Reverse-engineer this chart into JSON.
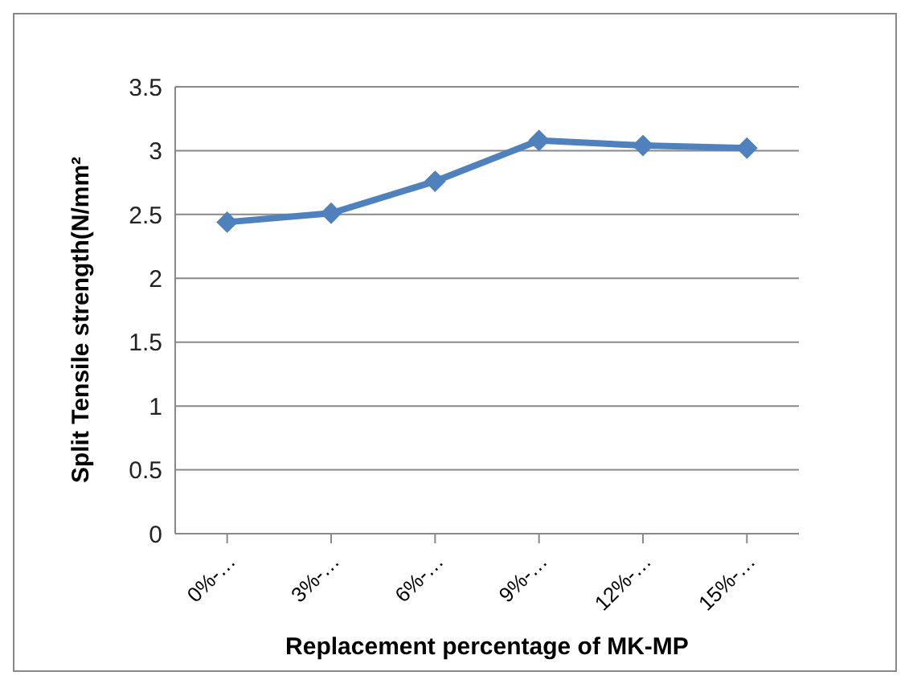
{
  "chart_data": {
    "type": "line",
    "xlabel": "Replacement percentage of MK-MP",
    "ylabel": "Split Tensile  strength(N/mm²",
    "categories": [
      "0%-…",
      "3%-…",
      "6%-…",
      "9%-…",
      "12%-…",
      "15%-…"
    ],
    "series": [
      {
        "color": "#4f81bd",
        "values": [
          2.44,
          2.51,
          2.76,
          3.08,
          3.04,
          3.02
        ]
      }
    ],
    "ylim": [
      0,
      3.5
    ],
    "yticks": [
      0,
      0.5,
      1,
      1.5,
      2,
      2.5,
      3,
      3.5
    ],
    "grid": "y",
    "legend": false,
    "marker": "diamond",
    "line_style": "solid"
  }
}
